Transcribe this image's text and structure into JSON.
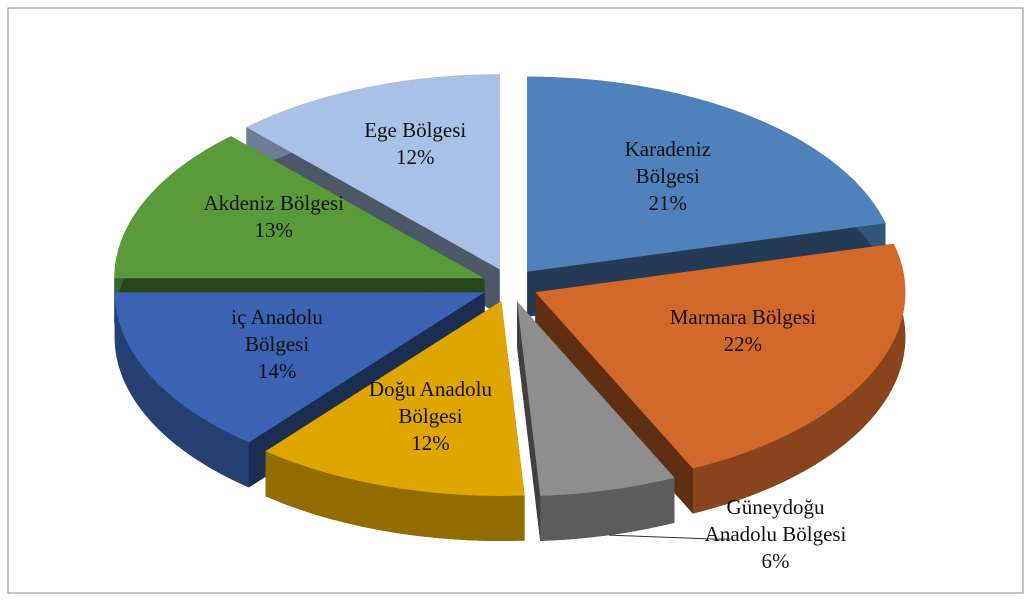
{
  "chart_data": {
    "type": "pie",
    "categories": [
      "Karadeniz Bölgesi",
      "Marmara Bölgesi",
      "Güneydoğu Anadolu Bölgesi",
      "Doğu Anadolu Bölgesi",
      "iç Anadolu Bölgesi",
      "Akdeniz Bölgesi",
      "Ege Bölgesi"
    ],
    "values": [
      21,
      22,
      6,
      12,
      14,
      13,
      12
    ],
    "value_labels": [
      "21%",
      "22%",
      "6%",
      "12%",
      "14%",
      "13%",
      "12%"
    ],
    "colors": [
      "#4f81bd",
      "#d2692a",
      "#8e8e8e",
      "#e0a600",
      "#3c63b3",
      "#5b9a3a",
      "#a9c1e6"
    ]
  }
}
